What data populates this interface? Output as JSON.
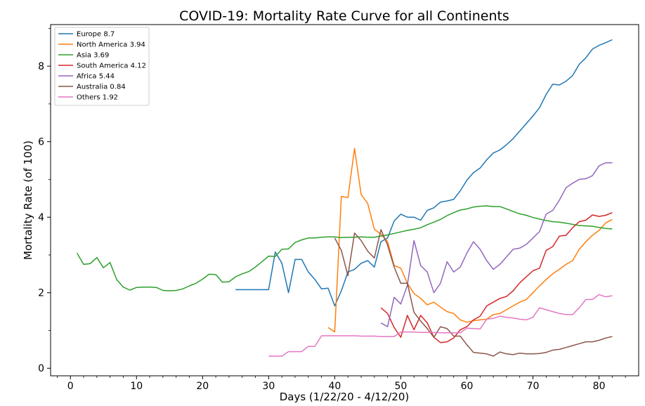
{
  "chart_data": {
    "type": "line",
    "title": "COVID-19: Mortality Rate Curve for all Continents",
    "xlabel": "Days (1/22/20 - 4/12/20)",
    "ylabel": "Mortality Rate (of 100)",
    "xlim": [
      -3,
      86
    ],
    "ylim": [
      -0.2,
      9.1
    ],
    "x_ticks": [
      0,
      10,
      20,
      30,
      40,
      50,
      60,
      70,
      80
    ],
    "y_ticks": [
      0,
      2,
      4,
      6,
      8
    ],
    "legend_position": "top-left",
    "grid": false,
    "series": [
      {
        "name": "Europe 8.7",
        "color": "#1f77b4",
        "x": [
          25,
          26,
          27,
          28,
          29,
          30,
          31,
          32,
          33,
          34,
          35,
          36,
          37,
          38,
          39,
          40,
          41,
          42,
          43,
          44,
          45,
          46,
          47,
          48,
          49,
          50,
          51,
          52,
          53,
          54,
          55,
          56,
          57,
          58,
          59,
          60,
          61,
          62,
          63,
          64,
          65,
          66,
          67,
          68,
          69,
          70,
          71,
          72,
          73,
          74,
          75,
          76,
          77,
          78,
          79,
          80,
          81,
          82
        ],
        "y": [
          2.08,
          2.08,
          2.08,
          2.08,
          2.08,
          2.08,
          3.08,
          2.78,
          2.0,
          2.88,
          2.88,
          2.55,
          2.35,
          2.1,
          2.12,
          1.65,
          2.05,
          2.55,
          2.62,
          2.78,
          2.85,
          2.68,
          3.35,
          3.45,
          3.9,
          4.08,
          4.0,
          4.0,
          3.92,
          4.18,
          4.25,
          4.4,
          4.43,
          4.47,
          4.7,
          4.98,
          5.18,
          5.3,
          5.52,
          5.7,
          5.78,
          5.92,
          6.08,
          6.28,
          6.48,
          6.68,
          6.9,
          7.25,
          7.52,
          7.5,
          7.6,
          7.75,
          8.05,
          8.22,
          8.45,
          8.55,
          8.62,
          8.7
        ]
      },
      {
        "name": "North America 3.94",
        "color": "#ff7f0e",
        "x": [
          39,
          40,
          41,
          42,
          43,
          44,
          45,
          46,
          47,
          48,
          49,
          50,
          51,
          52,
          53,
          54,
          55,
          56,
          57,
          58,
          59,
          60,
          61,
          62,
          63,
          64,
          65,
          66,
          67,
          68,
          69,
          70,
          71,
          72,
          73,
          74,
          75,
          76,
          77,
          78,
          79,
          80,
          81,
          82
        ],
        "y": [
          1.08,
          0.96,
          4.55,
          4.52,
          5.82,
          4.6,
          4.36,
          3.68,
          3.55,
          3.35,
          2.72,
          2.65,
          2.25,
          1.98,
          1.85,
          1.68,
          1.75,
          1.62,
          1.5,
          1.45,
          1.28,
          1.22,
          1.26,
          1.28,
          1.3,
          1.42,
          1.45,
          1.55,
          1.65,
          1.75,
          1.82,
          2.0,
          2.18,
          2.35,
          2.5,
          2.62,
          2.75,
          2.85,
          3.15,
          3.35,
          3.52,
          3.65,
          3.85,
          3.94
        ]
      },
      {
        "name": "Asia 3.69",
        "color": "#2ca02c",
        "x": [
          1,
          2,
          3,
          4,
          5,
          6,
          7,
          8,
          9,
          10,
          11,
          12,
          13,
          14,
          15,
          16,
          17,
          18,
          19,
          20,
          21,
          22,
          23,
          24,
          25,
          26,
          27,
          28,
          29,
          30,
          31,
          32,
          33,
          34,
          35,
          36,
          37,
          38,
          39,
          40,
          41,
          42,
          43,
          44,
          45,
          46,
          47,
          48,
          49,
          50,
          51,
          52,
          53,
          54,
          55,
          56,
          57,
          58,
          59,
          60,
          61,
          62,
          63,
          64,
          65,
          66,
          67,
          68,
          69,
          70,
          71,
          72,
          73,
          74,
          75,
          76,
          77,
          78,
          79,
          80,
          81,
          82
        ],
        "y": [
          3.05,
          2.75,
          2.77,
          2.93,
          2.66,
          2.8,
          2.35,
          2.15,
          2.07,
          2.14,
          2.15,
          2.15,
          2.14,
          2.06,
          2.05,
          2.06,
          2.1,
          2.18,
          2.25,
          2.36,
          2.49,
          2.48,
          2.28,
          2.29,
          2.42,
          2.5,
          2.56,
          2.68,
          2.82,
          2.97,
          2.96,
          3.15,
          3.16,
          3.33,
          3.4,
          3.45,
          3.45,
          3.47,
          3.48,
          3.48,
          3.46,
          3.47,
          3.47,
          3.48,
          3.47,
          3.47,
          3.5,
          3.53,
          3.57,
          3.61,
          3.65,
          3.68,
          3.72,
          3.8,
          3.87,
          3.94,
          4.04,
          4.12,
          4.19,
          4.22,
          4.27,
          4.29,
          4.3,
          4.28,
          4.28,
          4.22,
          4.15,
          4.09,
          4.05,
          3.99,
          3.95,
          3.91,
          3.88,
          3.87,
          3.84,
          3.81,
          3.78,
          3.77,
          3.76,
          3.73,
          3.7,
          3.69
        ]
      },
      {
        "name": "South America 4.12",
        "color": "#d62728",
        "x": [
          47,
          48,
          49,
          50,
          51,
          52,
          53,
          54,
          55,
          56,
          57,
          58,
          59,
          60,
          61,
          62,
          63,
          64,
          65,
          66,
          67,
          68,
          69,
          70,
          71,
          72,
          73,
          74,
          75,
          76,
          77,
          78,
          79,
          80,
          81,
          82
        ],
        "y": [
          1.6,
          1.45,
          1.08,
          0.82,
          1.4,
          1.02,
          1.4,
          1.2,
          0.82,
          0.68,
          0.7,
          0.8,
          1.02,
          1.1,
          1.28,
          1.38,
          1.65,
          1.75,
          1.85,
          1.9,
          2.05,
          2.26,
          2.42,
          2.58,
          2.65,
          3.12,
          3.22,
          3.5,
          3.52,
          3.72,
          3.88,
          3.92,
          4.06,
          4.02,
          4.05,
          4.12
        ]
      },
      {
        "name": "Africa 5.44",
        "color": "#9467bd",
        "x": [
          47,
          48,
          49,
          50,
          51,
          52,
          53,
          54,
          55,
          56,
          57,
          58,
          59,
          60,
          61,
          62,
          63,
          64,
          65,
          66,
          67,
          68,
          69,
          70,
          71,
          72,
          73,
          74,
          75,
          76,
          77,
          78,
          79,
          80,
          81,
          82
        ],
        "y": [
          1.2,
          1.1,
          1.88,
          1.7,
          2.2,
          3.38,
          2.72,
          2.55,
          2.0,
          2.25,
          2.82,
          2.55,
          2.68,
          3.05,
          3.35,
          3.15,
          2.85,
          2.62,
          2.75,
          2.95,
          3.15,
          3.18,
          3.28,
          3.45,
          3.62,
          4.08,
          4.18,
          4.45,
          4.78,
          4.9,
          5.0,
          5.02,
          5.1,
          5.36,
          5.44,
          5.44
        ]
      },
      {
        "name": "Australia 0.84",
        "color": "#8c564b",
        "x": [
          40,
          41,
          42,
          43,
          44,
          45,
          46,
          47,
          48,
          49,
          50,
          51,
          52,
          53,
          54,
          55,
          56,
          57,
          58,
          59,
          60,
          61,
          62,
          63,
          64,
          65,
          66,
          67,
          68,
          69,
          70,
          71,
          72,
          73,
          74,
          75,
          76,
          77,
          78,
          79,
          80,
          81,
          82
        ],
        "y": [
          3.45,
          3.12,
          2.45,
          3.58,
          3.38,
          3.1,
          2.92,
          3.67,
          3.26,
          2.68,
          2.25,
          2.25,
          1.48,
          1.25,
          1.05,
          0.82,
          1.1,
          1.05,
          0.85,
          0.85,
          0.62,
          0.42,
          0.4,
          0.38,
          0.32,
          0.43,
          0.38,
          0.36,
          0.4,
          0.38,
          0.38,
          0.39,
          0.42,
          0.48,
          0.5,
          0.55,
          0.6,
          0.65,
          0.7,
          0.7,
          0.74,
          0.8,
          0.84
        ]
      },
      {
        "name": "Others 1.92",
        "color": "#e377c2",
        "x": [
          30,
          31,
          32,
          33,
          34,
          35,
          36,
          37,
          38,
          39,
          40,
          41,
          42,
          43,
          44,
          45,
          46,
          47,
          48,
          49,
          50,
          51,
          52,
          53,
          54,
          55,
          56,
          57,
          58,
          59,
          60,
          61,
          62,
          63,
          64,
          65,
          66,
          67,
          68,
          69,
          70,
          71,
          72,
          73,
          74,
          75,
          76,
          77,
          78,
          79,
          80,
          81,
          82
        ],
        "y": [
          0.32,
          0.32,
          0.32,
          0.44,
          0.44,
          0.44,
          0.58,
          0.58,
          0.86,
          0.86,
          0.86,
          0.86,
          0.86,
          0.86,
          0.85,
          0.85,
          0.85,
          0.84,
          0.84,
          0.84,
          0.96,
          0.96,
          0.96,
          0.95,
          0.95,
          0.95,
          0.94,
          0.94,
          0.94,
          0.94,
          1.06,
          1.05,
          1.04,
          1.3,
          1.32,
          1.38,
          1.35,
          1.33,
          1.3,
          1.28,
          1.35,
          1.6,
          1.55,
          1.5,
          1.45,
          1.42,
          1.42,
          1.6,
          1.82,
          1.82,
          1.95,
          1.89,
          1.92
        ]
      }
    ]
  }
}
